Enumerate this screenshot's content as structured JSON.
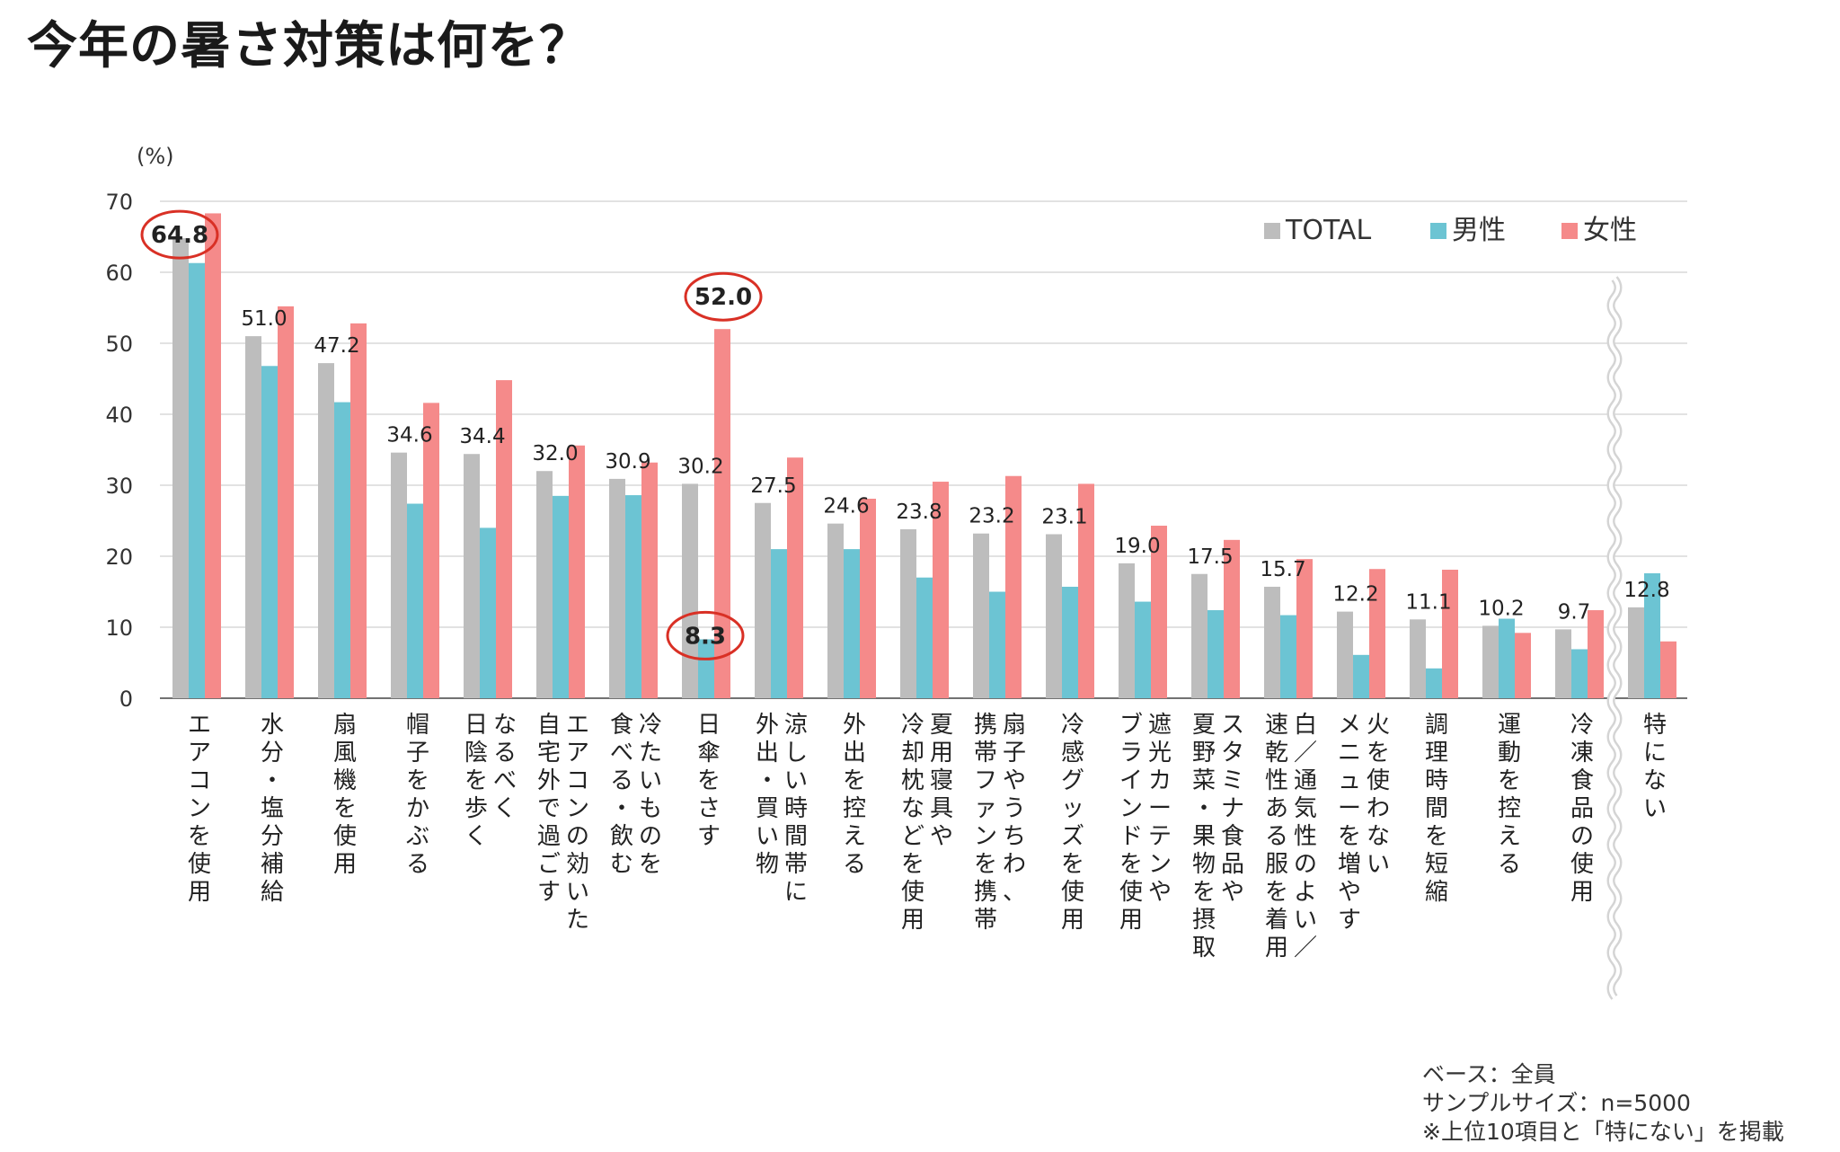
{
  "title": "今年の暑さ対策は何を？",
  "notes": [
    "ベース：全員",
    "サンプルサイズ：n=5000",
    "※上位10項目と「特にない」を掲載"
  ],
  "colors": {
    "total": "#bdbdbd",
    "male": "#6cc4d3",
    "female": "#f58a8a",
    "highlight": "#d93025",
    "grid": "#d9d9d9",
    "axis": "#444444"
  },
  "chart_data": {
    "type": "bar",
    "ylabel": "(%)",
    "ylim": [
      0,
      70
    ],
    "yticks": [
      0,
      10,
      20,
      30,
      40,
      50,
      60,
      70
    ],
    "grid": true,
    "legend_position": "top-right",
    "categories": [
      "エアコンを使用",
      "水分・塩分補給",
      "扇風機を使用",
      "帽子をかぶる",
      "なるべく日陰を歩く",
      "エアコンの効いた自宅外で過ごす",
      "冷たいものを食べる・飲む",
      "日傘をさす",
      "涼しい時間帯に外出・買い物",
      "外出を控える",
      "夏用寝具や冷却枕などを使用",
      "扇子やうちわ、携帯ファンを携帯",
      "冷感グッズを使用",
      "遮光カーテンやブラインドを使用",
      "スタミナ食品や夏野菜・果物を摂取",
      "白／通気性のよい／速乾性ある服を着用",
      "火を使わないメニューを増やす",
      "調理時間を短縮",
      "運動を控える",
      "冷凍食品の使用",
      "特にない"
    ],
    "category_lines": [
      [
        "エアコンを使用"
      ],
      [
        "水分・塩分補給"
      ],
      [
        "扇風機を使用"
      ],
      [
        "帽子をかぶる"
      ],
      [
        "なるべく",
        "日陰を歩く"
      ],
      [
        "エアコンの効いた",
        "自宅外で過ごす"
      ],
      [
        "冷たいものを",
        "食べる・飲む"
      ],
      [
        "日傘をさす"
      ],
      [
        "涼しい時間帯に",
        "外出・買い物"
      ],
      [
        "外出を控える"
      ],
      [
        "夏用寝具や",
        "冷却枕などを使用"
      ],
      [
        "扇子やうちわ、",
        "携帯ファンを携帯"
      ],
      [
        "冷感グッズを使用"
      ],
      [
        "遮光カーテンや",
        "ブラインドを使用"
      ],
      [
        "スタミナ食品や",
        "夏野菜・果物を摂取"
      ],
      [
        "白／通気性のよい／",
        "速乾性ある服を着用"
      ],
      [
        "火を使わない",
        "メニューを増やす"
      ],
      [
        "調理時間を短縮"
      ],
      [
        "運動を控える"
      ],
      [
        "冷凍食品の使用"
      ],
      [
        "特にない"
      ]
    ],
    "series": [
      {
        "name": "TOTAL",
        "values": [
          64.8,
          51.0,
          47.2,
          34.6,
          34.4,
          32.0,
          30.9,
          30.2,
          27.5,
          24.6,
          23.8,
          23.2,
          23.1,
          19.0,
          17.5,
          15.7,
          12.2,
          11.1,
          10.2,
          9.7,
          12.8
        ]
      },
      {
        "name": "男性",
        "values": [
          61.3,
          46.8,
          41.7,
          27.4,
          24.0,
          28.5,
          28.6,
          8.3,
          21.0,
          21.0,
          17.0,
          15.0,
          15.7,
          13.6,
          12.4,
          11.7,
          6.1,
          4.2,
          11.2,
          6.9,
          17.6
        ]
      },
      {
        "name": "女性",
        "values": [
          68.3,
          55.2,
          52.8,
          41.6,
          44.8,
          35.6,
          33.2,
          52.0,
          33.9,
          28.1,
          30.5,
          31.3,
          30.2,
          24.3,
          22.3,
          19.6,
          18.2,
          18.1,
          9.2,
          12.4,
          8.0
        ]
      }
    ],
    "data_labels": [
      "64.8",
      "51.0",
      "47.2",
      "34.6",
      "34.4",
      "32.0",
      "30.9",
      "30.2",
      "27.5",
      "24.6",
      "23.8",
      "23.2",
      "23.1",
      "19.0",
      "17.5",
      "15.7",
      "12.2",
      "11.1",
      "10.2",
      "9.7",
      "12.8"
    ],
    "callouts": [
      {
        "category_index": 0,
        "series_index": 0,
        "label": "64.8"
      },
      {
        "category_index": 7,
        "series_index": 2,
        "label": "52.0"
      },
      {
        "category_index": 7,
        "series_index": 1,
        "label": "8.3"
      }
    ],
    "axis_break_before_index": 20
  }
}
